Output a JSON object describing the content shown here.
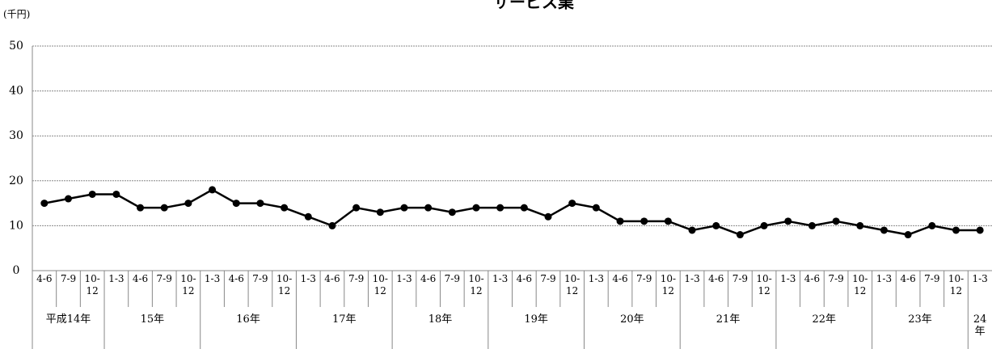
{
  "chart_data": {
    "type": "line",
    "title": "サービス業",
    "y_label": "(千円)",
    "groups": [
      {
        "label": "平成14年",
        "categories": [
          "4-6",
          "7-9",
          "10-12"
        ]
      },
      {
        "label": "15年",
        "categories": [
          "1-3",
          "4-6",
          "7-9",
          "10-12"
        ]
      },
      {
        "label": "16年",
        "categories": [
          "1-3",
          "4-6",
          "7-9",
          "10-12"
        ]
      },
      {
        "label": "17年",
        "categories": [
          "1-3",
          "4-6",
          "7-9",
          "10-12"
        ]
      },
      {
        "label": "18年",
        "categories": [
          "1-3",
          "4-6",
          "7-9",
          "10-12"
        ]
      },
      {
        "label": "19年",
        "categories": [
          "1-3",
          "4-6",
          "7-9",
          "10-12"
        ]
      },
      {
        "label": "20年",
        "categories": [
          "1-3",
          "4-6",
          "7-9",
          "10-12"
        ]
      },
      {
        "label": "21年",
        "categories": [
          "1-3",
          "4-6",
          "7-9",
          "10-12"
        ]
      },
      {
        "label": "22年",
        "categories": [
          "1-3",
          "4-6",
          "7-9",
          "10-12"
        ]
      },
      {
        "label": "23年",
        "categories": [
          "1-3",
          "4-6",
          "7-9",
          "10-12"
        ]
      },
      {
        "label": "24年",
        "categories": [
          "1-3"
        ]
      }
    ],
    "values": [
      15,
      16,
      17,
      17,
      14,
      14,
      15,
      18,
      15,
      15,
      14,
      12,
      10,
      14,
      13,
      14,
      14,
      13,
      14,
      14,
      14,
      12,
      15,
      14,
      11,
      11,
      11,
      9,
      10,
      8,
      10,
      11,
      10,
      11,
      10,
      9,
      8,
      10,
      9,
      9
    ],
    "color": "#000000",
    "ylim": [
      0,
      50
    ],
    "yticks": [
      0,
      10,
      20,
      30,
      40,
      50
    ],
    "grid": true
  }
}
